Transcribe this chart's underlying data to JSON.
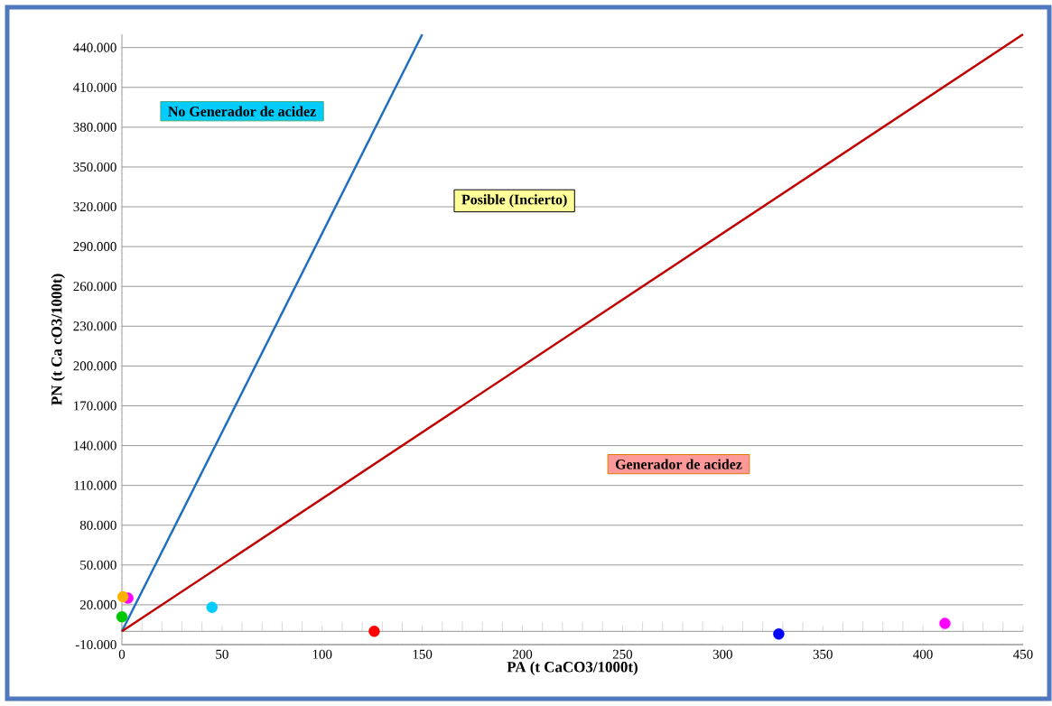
{
  "chart_data": {
    "type": "scatter",
    "xlabel": "PA (t CaCO3/1000t)",
    "ylabel": "PN (t Ca cO3/1000t)",
    "xlim": [
      0,
      450
    ],
    "ylim": [
      -10000,
      450000
    ],
    "xticks": [
      0,
      50,
      100,
      150,
      200,
      250,
      300,
      350,
      400,
      450
    ],
    "yticks": [
      {
        "value": -10000,
        "label": "-10.000"
      },
      {
        "value": 20000,
        "label": "20.000"
      },
      {
        "value": 50000,
        "label": "50.000"
      },
      {
        "value": 80000,
        "label": "80.000"
      },
      {
        "value": 110000,
        "label": "110.000"
      },
      {
        "value": 140000,
        "label": "140.000"
      },
      {
        "value": 170000,
        "label": "170.000"
      },
      {
        "value": 200000,
        "label": "200.000"
      },
      {
        "value": 230000,
        "label": "230.000"
      },
      {
        "value": 260000,
        "label": "260.000"
      },
      {
        "value": 290000,
        "label": "290.000"
      },
      {
        "value": 320000,
        "label": "320.000"
      },
      {
        "value": 350000,
        "label": "350.000"
      },
      {
        "value": 380000,
        "label": "380.000"
      },
      {
        "value": 410000,
        "label": "410.000"
      },
      {
        "value": 440000,
        "label": "440.000"
      }
    ],
    "grid": "y",
    "series": [
      {
        "type": "line",
        "color": "#1f6fbf",
        "x": [
          0,
          150
        ],
        "values": [
          0,
          450000
        ],
        "marker": "none"
      },
      {
        "type": "line",
        "color": "#c00000",
        "x": [
          0,
          450
        ],
        "values": [
          0,
          450000
        ],
        "marker": "none"
      },
      {
        "marker": "circle",
        "x": [
          3,
          0.5,
          0,
          45,
          126,
          328,
          411
        ],
        "values": [
          25000,
          26000,
          11000,
          18000,
          0,
          -2000,
          6000
        ],
        "colors": [
          "#ff00ff",
          "#ffb000",
          "#00c800",
          "#00ccff",
          "#ff0000",
          "#0000ff",
          "#ff00ff"
        ]
      }
    ],
    "annotations": [
      "No Generador de acidez",
      "Posible (Incierto)",
      "Generador de acidez"
    ]
  }
}
